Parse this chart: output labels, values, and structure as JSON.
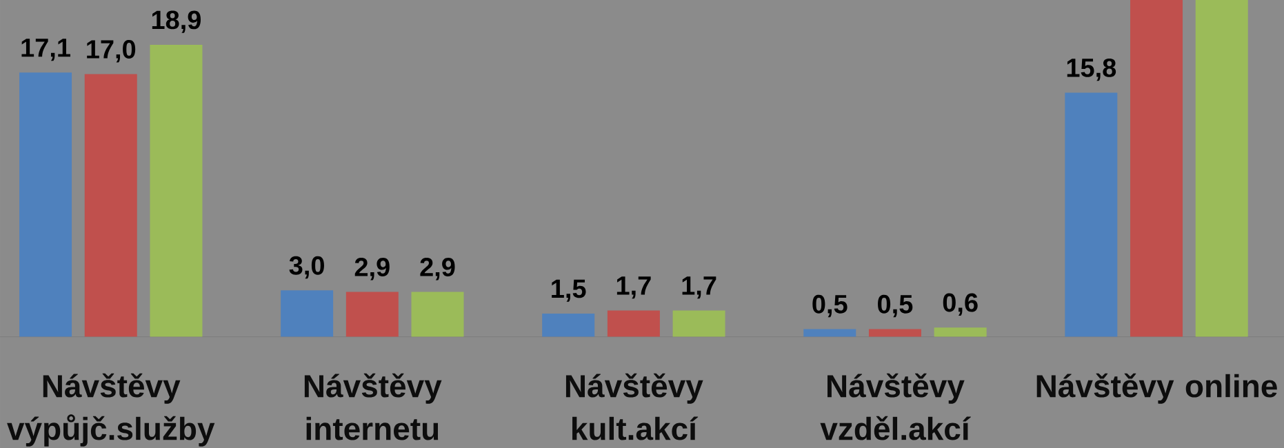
{
  "chart_data": {
    "type": "bar",
    "categories": [
      "Návštěvy výpůjč.služby",
      "Návštěvy internetu",
      "Návštěvy kult.akcí",
      "Návštěvy vzděl.akcí",
      "Návštěvy online"
    ],
    "series": [
      {
        "color": "#4f81bd",
        "values": [
          17.1,
          3.0,
          1.5,
          0.5,
          15.8
        ],
        "value_labels": [
          "17,1",
          "3,0",
          "1,5",
          "0,5",
          "15,8"
        ]
      },
      {
        "color": "#c0504d",
        "values": [
          17.0,
          2.9,
          1.7,
          0.5,
          21.8
        ],
        "value_labels": [
          "17,0",
          "2,9",
          "1,7",
          "0,5",
          null
        ]
      },
      {
        "color": "#9bbb59",
        "values": [
          18.9,
          2.9,
          1.7,
          0.6,
          21.8
        ],
        "value_labels": [
          "18,9",
          "2,9",
          "1,7",
          "0,6",
          null
        ]
      }
    ],
    "ylim": [
      0,
      21.8
    ],
    "tick_labels": "x"
  }
}
